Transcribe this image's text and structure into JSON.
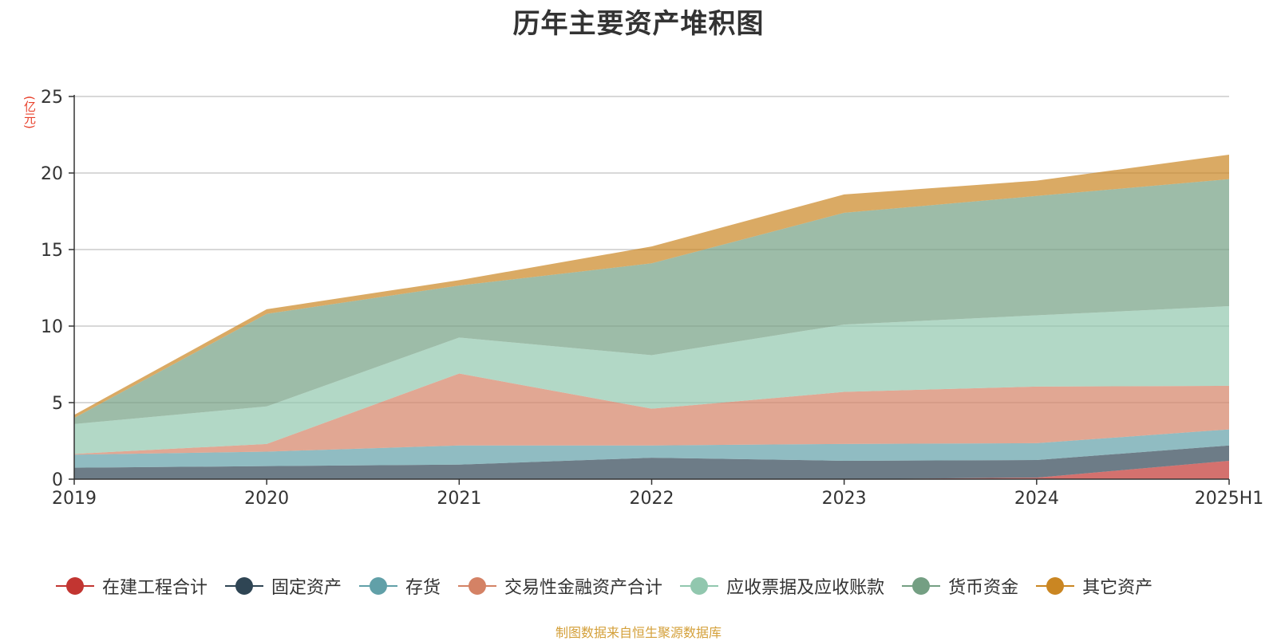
{
  "title": "历年主要资产堆积图",
  "unit": "(亿元)",
  "footer": "制图数据来自恒生聚源数据库",
  "chart_data": {
    "type": "area",
    "stacked": true,
    "title": "历年主要资产堆积图",
    "ylabel": "(亿元)",
    "xlabel": "",
    "categories": [
      "2019",
      "2020",
      "2021",
      "2022",
      "2023",
      "2024",
      "2025H1"
    ],
    "ylim": [
      0,
      25
    ],
    "yticks": [
      0,
      5,
      10,
      15,
      20,
      25
    ],
    "grid": true,
    "legend_position": "bottom",
    "series": [
      {
        "name": "在建工程合计",
        "color": "#c23531",
        "values": [
          0,
          0,
          0,
          0,
          0,
          0.1,
          1.2
        ]
      },
      {
        "name": "固定资产",
        "color": "#2f4554",
        "values": [
          0.75,
          0.85,
          0.95,
          1.4,
          1.2,
          1.15,
          1.0
        ]
      },
      {
        "name": "存货",
        "color": "#61a0a8",
        "values": [
          0.85,
          0.95,
          1.25,
          0.8,
          1.1,
          1.1,
          1.05
        ]
      },
      {
        "name": "交易性金融资产合计",
        "color": "#d48265",
        "values": [
          0.05,
          0.5,
          4.7,
          2.4,
          3.4,
          3.7,
          2.85
        ]
      },
      {
        "name": "应收票据及应收账款",
        "color": "#91c7ae",
        "values": [
          1.95,
          2.45,
          2.35,
          3.5,
          4.4,
          4.65,
          5.2
        ]
      },
      {
        "name": "货币资金",
        "color": "#749f83",
        "values": [
          0.4,
          6.05,
          3.4,
          6.0,
          7.3,
          7.8,
          8.3
        ]
      },
      {
        "name": "其它资产",
        "color": "#ca8622",
        "values": [
          0.2,
          0.3,
          0.35,
          1.1,
          1.2,
          1.0,
          1.6
        ]
      }
    ]
  }
}
